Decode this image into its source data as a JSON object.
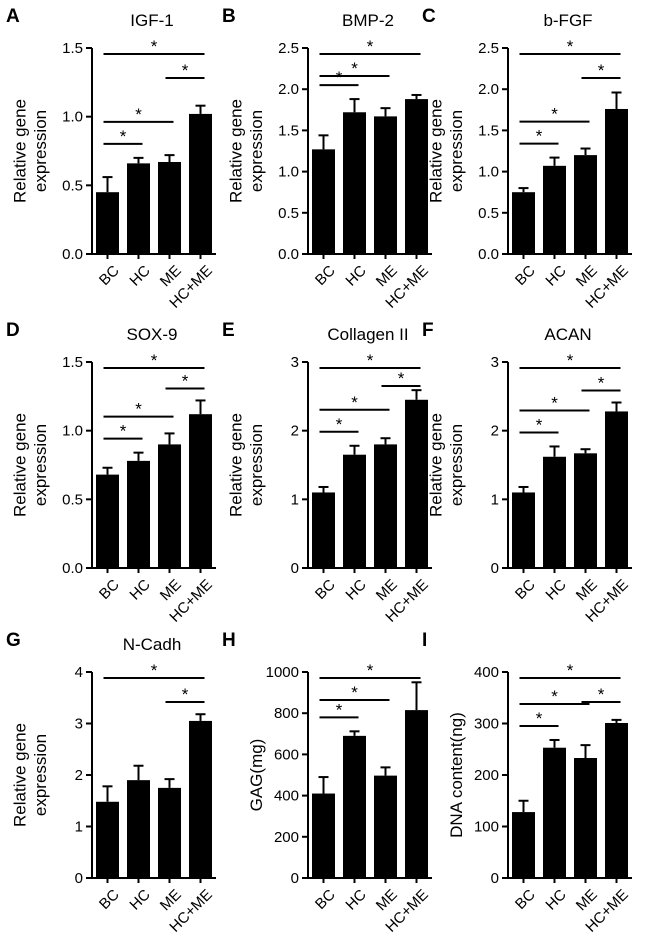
{
  "chart_data": [
    {
      "type": "bar",
      "panel": "A",
      "title": "IGF-1",
      "ylabel_lines": [
        "Relative gene",
        "expression"
      ],
      "categories": [
        "BC",
        "HC",
        "ME",
        "HC+ME"
      ],
      "values": [
        0.45,
        0.66,
        0.67,
        1.02
      ],
      "errors": [
        0.11,
        0.04,
        0.05,
        0.06
      ],
      "ylim": [
        0,
        1.5
      ],
      "yticks": [
        "0.0",
        "0.5",
        "1.0",
        "1.5"
      ],
      "significance": [
        {
          "from": "BC",
          "to": "HC",
          "label": "*"
        },
        {
          "from": "BC",
          "to": "ME",
          "label": "*"
        },
        {
          "from": "BC",
          "to": "HC+ME",
          "label": "*"
        },
        {
          "from": "ME",
          "to": "HC+ME",
          "label": "*"
        }
      ]
    },
    {
      "type": "bar",
      "panel": "B",
      "title": "BMP-2",
      "ylabel_lines": [
        "Relative gene",
        "expression"
      ],
      "categories": [
        "BC",
        "HC",
        "ME",
        "HC+ME"
      ],
      "values": [
        1.27,
        1.72,
        1.67,
        1.88
      ],
      "errors": [
        0.17,
        0.16,
        0.1,
        0.05
      ],
      "ylim": [
        0,
        2.5
      ],
      "yticks": [
        "0.0",
        "0.5",
        "1.0",
        "1.5",
        "2.0",
        "2.5"
      ],
      "significance": [
        {
          "from": "BC",
          "to": "HC",
          "label": "*"
        },
        {
          "from": "BC",
          "to": "ME",
          "label": "*"
        },
        {
          "from": "BC",
          "to": "HC+ME",
          "label": "*"
        }
      ]
    },
    {
      "type": "bar",
      "panel": "C",
      "title": "b-FGF",
      "ylabel_lines": [
        "Relative gene",
        "expression"
      ],
      "categories": [
        "BC",
        "HC",
        "ME",
        "HC+ME"
      ],
      "values": [
        0.75,
        1.07,
        1.2,
        1.76
      ],
      "errors": [
        0.05,
        0.1,
        0.08,
        0.2
      ],
      "ylim": [
        0,
        2.5
      ],
      "yticks": [
        "0.0",
        "0.5",
        "1.0",
        "1.5",
        "2.0",
        "2.5"
      ],
      "significance": [
        {
          "from": "BC",
          "to": "HC",
          "label": "*"
        },
        {
          "from": "BC",
          "to": "ME",
          "label": "*"
        },
        {
          "from": "BC",
          "to": "HC+ME",
          "label": "*"
        },
        {
          "from": "ME",
          "to": "HC+ME",
          "label": "*"
        }
      ]
    },
    {
      "type": "bar",
      "panel": "D",
      "title": "SOX-9",
      "ylabel_lines": [
        "Relative gene",
        "expression"
      ],
      "categories": [
        "BC",
        "HC",
        "ME",
        "HC+ME"
      ],
      "values": [
        0.68,
        0.78,
        0.9,
        1.12
      ],
      "errors": [
        0.05,
        0.06,
        0.08,
        0.1
      ],
      "ylim": [
        0,
        1.5
      ],
      "yticks": [
        "0.0",
        "0.5",
        "1.0",
        "1.5"
      ],
      "significance": [
        {
          "from": "BC",
          "to": "HC",
          "label": "*"
        },
        {
          "from": "BC",
          "to": "ME",
          "label": "*"
        },
        {
          "from": "BC",
          "to": "HC+ME",
          "label": "*"
        },
        {
          "from": "ME",
          "to": "HC+ME",
          "label": "*"
        }
      ]
    },
    {
      "type": "bar",
      "panel": "E",
      "title": "Collagen II",
      "ylabel_lines": [
        "Relative gene",
        "expression"
      ],
      "categories": [
        "BC",
        "HC",
        "ME",
        "HC+ME"
      ],
      "values": [
        1.1,
        1.65,
        1.8,
        2.45
      ],
      "errors": [
        0.08,
        0.13,
        0.09,
        0.14
      ],
      "ylim": [
        0,
        3
      ],
      "yticks": [
        "0",
        "1",
        "2",
        "3"
      ],
      "significance": [
        {
          "from": "BC",
          "to": "HC",
          "label": "*"
        },
        {
          "from": "BC",
          "to": "ME",
          "label": "*"
        },
        {
          "from": "BC",
          "to": "HC+ME",
          "label": "*"
        },
        {
          "from": "ME",
          "to": "HC+ME",
          "label": "*"
        }
      ]
    },
    {
      "type": "bar",
      "panel": "F",
      "title": "ACAN",
      "ylabel_lines": [
        "Relative gene",
        "expression"
      ],
      "categories": [
        "BC",
        "HC",
        "ME",
        "HC+ME"
      ],
      "values": [
        1.1,
        1.62,
        1.67,
        2.28
      ],
      "errors": [
        0.08,
        0.15,
        0.06,
        0.13
      ],
      "ylim": [
        0,
        3
      ],
      "yticks": [
        "0",
        "1",
        "2",
        "3"
      ],
      "significance": [
        {
          "from": "BC",
          "to": "HC",
          "label": "*"
        },
        {
          "from": "BC",
          "to": "ME",
          "label": "*"
        },
        {
          "from": "BC",
          "to": "HC+ME",
          "label": "*"
        },
        {
          "from": "ME",
          "to": "HC+ME",
          "label": "*"
        }
      ]
    },
    {
      "type": "bar",
      "panel": "G",
      "title": "N-Cadh",
      "ylabel_lines": [
        "Relative gene",
        "expression"
      ],
      "categories": [
        "BC",
        "HC",
        "ME",
        "HC+ME"
      ],
      "values": [
        1.48,
        1.9,
        1.75,
        3.05
      ],
      "errors": [
        0.3,
        0.28,
        0.17,
        0.13
      ],
      "ylim": [
        0,
        4
      ],
      "yticks": [
        "0",
        "1",
        "2",
        "3",
        "4"
      ],
      "significance": [
        {
          "from": "BC",
          "to": "HC+ME",
          "label": "*"
        },
        {
          "from": "ME",
          "to": "HC+ME",
          "label": "*"
        }
      ]
    },
    {
      "type": "bar",
      "panel": "H",
      "title": "",
      "ylabel_lines": [
        "GAG(mg)"
      ],
      "categories": [
        "BC",
        "HC",
        "ME",
        "HC+ME"
      ],
      "values": [
        410,
        690,
        497,
        815
      ],
      "errors": [
        80,
        22,
        40,
        135
      ],
      "ylim": [
        0,
        1000
      ],
      "yticks": [
        "0",
        "200",
        "400",
        "600",
        "800",
        "1000"
      ],
      "significance": [
        {
          "from": "BC",
          "to": "HC",
          "label": "*"
        },
        {
          "from": "BC",
          "to": "ME",
          "label": "*"
        },
        {
          "from": "BC",
          "to": "HC+ME",
          "label": "*"
        }
      ]
    },
    {
      "type": "bar",
      "panel": "I",
      "title": "",
      "ylabel_lines": [
        "DNA content(ng)"
      ],
      "categories": [
        "BC",
        "HC",
        "ME",
        "HC+ME"
      ],
      "values": [
        128,
        253,
        233,
        301
      ],
      "errors": [
        22,
        15,
        25,
        6
      ],
      "ylim": [
        0,
        400
      ],
      "yticks": [
        "0",
        "100",
        "200",
        "300",
        "400"
      ],
      "significance": [
        {
          "from": "BC",
          "to": "HC",
          "label": "*"
        },
        {
          "from": "BC",
          "to": "ME",
          "label": "*"
        },
        {
          "from": "BC",
          "to": "HC+ME",
          "label": "*"
        },
        {
          "from": "ME",
          "to": "HC+ME",
          "label": "*"
        }
      ]
    }
  ]
}
